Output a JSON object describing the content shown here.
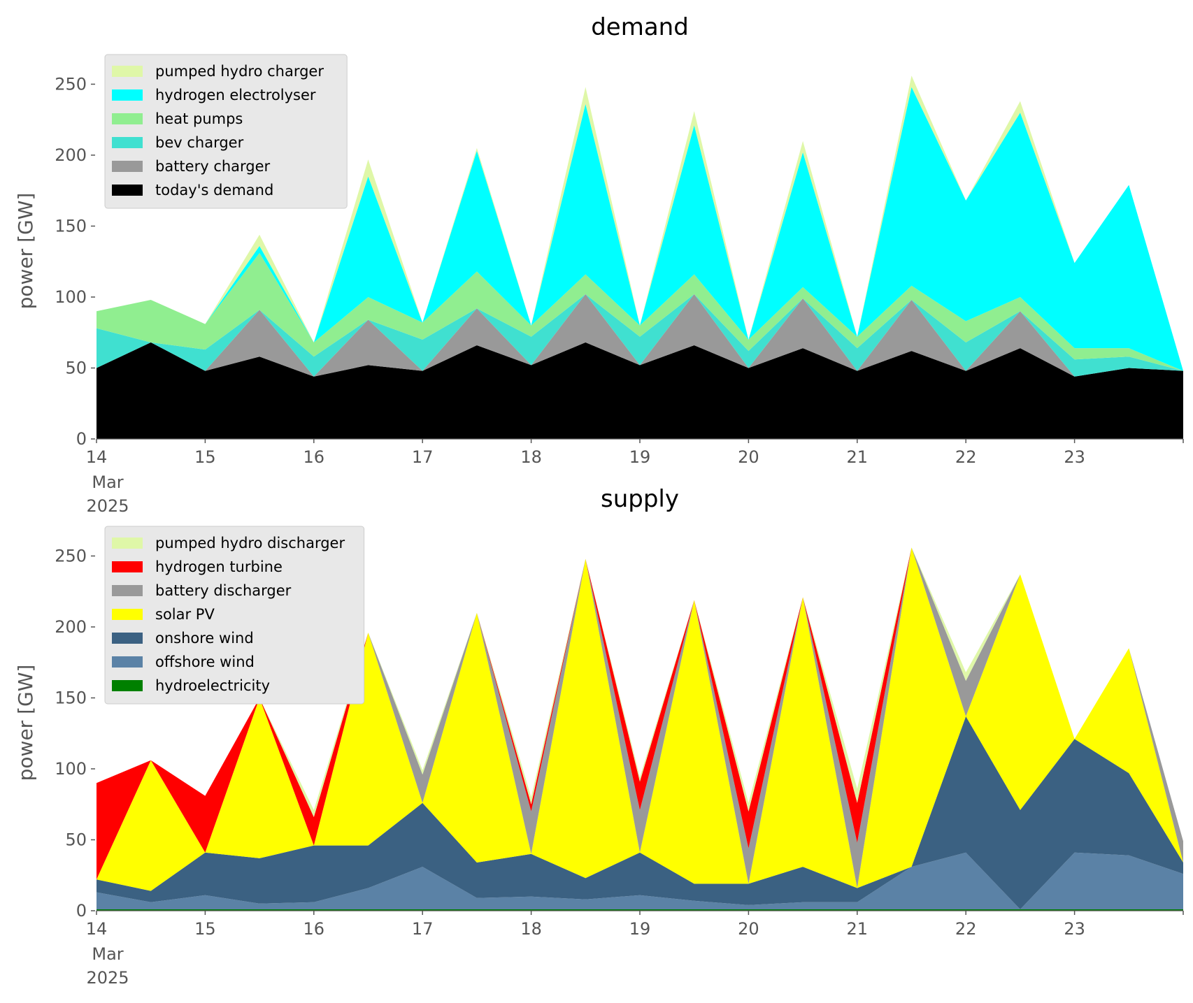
{
  "chart_data": [
    {
      "type": "area",
      "title": "demand",
      "ylabel": "power [GW]",
      "xlabel": "",
      "ylim": [
        0,
        265
      ],
      "xlim": [
        "2025-03-14 00:00",
        "2025-03-24 00:00"
      ],
      "x_ticks": [
        {
          "date": "2025-03-14",
          "label": "14",
          "sub1": "Mar",
          "sub2": "2025"
        },
        {
          "date": "2025-03-15",
          "label": "15"
        },
        {
          "date": "2025-03-16",
          "label": "16"
        },
        {
          "date": "2025-03-17",
          "label": "17"
        },
        {
          "date": "2025-03-18",
          "label": "18"
        },
        {
          "date": "2025-03-19",
          "label": "19"
        },
        {
          "date": "2025-03-20",
          "label": "20"
        },
        {
          "date": "2025-03-21",
          "label": "21"
        },
        {
          "date": "2025-03-22",
          "label": "22"
        },
        {
          "date": "2025-03-23",
          "label": "23"
        }
      ],
      "y_ticks": [
        0,
        50,
        100,
        150,
        200,
        250
      ],
      "grid": false,
      "stacked": true,
      "legend_position": "top-left",
      "legend": [
        {
          "label": "pumped hydro charger",
          "color": "#dff7a8"
        },
        {
          "label": "hydrogen electrolyser",
          "color": "#00ffff"
        },
        {
          "label": "heat pumps",
          "color": "#90ee90"
        },
        {
          "label": "bev charger",
          "color": "#40e0d0"
        },
        {
          "label": "battery charger",
          "color": "#999999"
        },
        {
          "label": "today's demand",
          "color": "#000000"
        }
      ],
      "x": [
        "2025-03-14 00:00",
        "2025-03-14 12:00",
        "2025-03-15 00:00",
        "2025-03-15 12:00",
        "2025-03-16 00:00",
        "2025-03-16 12:00",
        "2025-03-17 00:00",
        "2025-03-17 12:00",
        "2025-03-18 00:00",
        "2025-03-18 12:00",
        "2025-03-19 00:00",
        "2025-03-19 12:00",
        "2025-03-20 00:00",
        "2025-03-20 12:00",
        "2025-03-21 00:00",
        "2025-03-21 12:00",
        "2025-03-22 00:00",
        "2025-03-22 12:00",
        "2025-03-23 00:00",
        "2025-03-23 12:00",
        "2025-03-24 00:00"
      ],
      "series": [
        {
          "name": "today's demand",
          "color": "#000000",
          "values": [
            50,
            68,
            48,
            58,
            44,
            52,
            48,
            66,
            52,
            68,
            52,
            66,
            50,
            64,
            48,
            62,
            48,
            64,
            44,
            50,
            48
          ]
        },
        {
          "name": "battery charger",
          "color": "#999999",
          "values": [
            0,
            0,
            0,
            33,
            0,
            32,
            0,
            26,
            0,
            34,
            0,
            36,
            0,
            35,
            0,
            36,
            0,
            26,
            0,
            0,
            0
          ]
        },
        {
          "name": "bev charger",
          "color": "#40e0d0",
          "values": [
            28,
            0,
            15,
            0,
            14,
            0,
            22,
            0,
            20,
            0,
            20,
            0,
            12,
            0,
            16,
            0,
            20,
            0,
            12,
            8,
            0
          ]
        },
        {
          "name": "heat pumps",
          "color": "#90ee90",
          "values": [
            12,
            30,
            18,
            40,
            10,
            16,
            12,
            26,
            8,
            14,
            8,
            14,
            8,
            8,
            8,
            10,
            15,
            10,
            8,
            6,
            0
          ]
        },
        {
          "name": "hydrogen electrolyser",
          "color": "#00ffff",
          "values": [
            0,
            0,
            0,
            5,
            0,
            85,
            0,
            85,
            0,
            120,
            0,
            105,
            0,
            95,
            0,
            140,
            85,
            130,
            60,
            115,
            0
          ]
        },
        {
          "name": "pumped hydro charger",
          "color": "#dff7a8",
          "values": [
            0,
            0,
            0,
            8,
            0,
            12,
            0,
            2,
            0,
            12,
            0,
            10,
            0,
            8,
            0,
            8,
            0,
            8,
            0,
            0,
            0
          ]
        }
      ]
    },
    {
      "type": "area",
      "title": "supply",
      "ylabel": "power [GW]",
      "xlabel": "",
      "ylim": [
        0,
        265
      ],
      "xlim": [
        "2025-03-14 00:00",
        "2025-03-24 00:00"
      ],
      "x_ticks": [
        {
          "date": "2025-03-14",
          "label": "14",
          "sub1": "Mar",
          "sub2": "2025"
        },
        {
          "date": "2025-03-15",
          "label": "15"
        },
        {
          "date": "2025-03-16",
          "label": "16"
        },
        {
          "date": "2025-03-17",
          "label": "17"
        },
        {
          "date": "2025-03-18",
          "label": "18"
        },
        {
          "date": "2025-03-19",
          "label": "19"
        },
        {
          "date": "2025-03-20",
          "label": "20"
        },
        {
          "date": "2025-03-21",
          "label": "21"
        },
        {
          "date": "2025-03-22",
          "label": "22"
        },
        {
          "date": "2025-03-23",
          "label": "23"
        }
      ],
      "y_ticks": [
        0,
        50,
        100,
        150,
        200,
        250
      ],
      "grid": false,
      "stacked": true,
      "legend_position": "top-left",
      "legend": [
        {
          "label": "pumped hydro discharger",
          "color": "#dff7a8"
        },
        {
          "label": "hydrogen turbine",
          "color": "#ff0000"
        },
        {
          "label": "battery discharger",
          "color": "#999999"
        },
        {
          "label": "solar PV",
          "color": "#ffff00"
        },
        {
          "label": "onshore wind",
          "color": "#3b6182"
        },
        {
          "label": "offshore wind",
          "color": "#5b82a6"
        },
        {
          "label": "hydroelectricity",
          "color": "#008000"
        }
      ],
      "x": [
        "2025-03-14 00:00",
        "2025-03-14 12:00",
        "2025-03-15 00:00",
        "2025-03-15 12:00",
        "2025-03-16 00:00",
        "2025-03-16 12:00",
        "2025-03-17 00:00",
        "2025-03-17 12:00",
        "2025-03-18 00:00",
        "2025-03-18 12:00",
        "2025-03-19 00:00",
        "2025-03-19 12:00",
        "2025-03-20 00:00",
        "2025-03-20 12:00",
        "2025-03-21 00:00",
        "2025-03-21 12:00",
        "2025-03-22 00:00",
        "2025-03-22 12:00",
        "2025-03-23 00:00",
        "2025-03-23 12:00",
        "2025-03-24 00:00"
      ],
      "series": [
        {
          "name": "hydroelectricity",
          "color": "#008000",
          "values": [
            1,
            1,
            1,
            1,
            1,
            1,
            1,
            1,
            1,
            1,
            1,
            1,
            1,
            1,
            1,
            1,
            1,
            1,
            1,
            1,
            1
          ]
        },
        {
          "name": "offshore wind",
          "color": "#5b82a6",
          "values": [
            12,
            5,
            10,
            4,
            5,
            15,
            30,
            8,
            9,
            7,
            10,
            6,
            3,
            5,
            5,
            30,
            40,
            0,
            40,
            38,
            25
          ]
        },
        {
          "name": "onshore wind",
          "color": "#3b6182",
          "values": [
            9,
            8,
            30,
            32,
            40,
            30,
            45,
            25,
            30,
            15,
            30,
            12,
            15,
            25,
            10,
            0,
            96,
            70,
            80,
            58,
            8
          ]
        },
        {
          "name": "solar PV",
          "color": "#ffff00",
          "values": [
            0,
            92,
            0,
            113,
            0,
            150,
            0,
            176,
            0,
            225,
            0,
            200,
            0,
            190,
            0,
            225,
            0,
            166,
            0,
            88,
            0
          ]
        },
        {
          "name": "battery discharger",
          "color": "#999999",
          "values": [
            0,
            0,
            0,
            0,
            0,
            0,
            20,
            0,
            30,
            0,
            30,
            0,
            25,
            0,
            32,
            0,
            25,
            0,
            0,
            0,
            15
          ]
        },
        {
          "name": "hydrogen turbine",
          "color": "#ff0000",
          "values": [
            68,
            0,
            40,
            0,
            20,
            0,
            0,
            0,
            5,
            0,
            20,
            0,
            26,
            0,
            28,
            0,
            0,
            0,
            0,
            0,
            0
          ]
        },
        {
          "name": "pumped hydro discharger",
          "color": "#dff7a8",
          "values": [
            0,
            0,
            0,
            0,
            5,
            0,
            3,
            0,
            5,
            0,
            3,
            0,
            6,
            0,
            10,
            0,
            6,
            0,
            0,
            0,
            0
          ]
        }
      ]
    }
  ]
}
